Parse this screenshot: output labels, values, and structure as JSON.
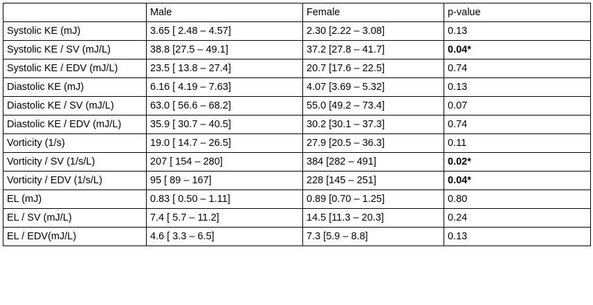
{
  "table": {
    "header": [
      "",
      "Male",
      "Female",
      "p-value"
    ],
    "rows": [
      [
        "Systolic KE (mJ)",
        "3.65 [ 2.48 – 4.57]",
        "2.30 [2.22 – 3.08]",
        "0.13"
      ],
      [
        "Systolic KE / SV (mJ/L)",
        "38.8 [27.5 – 49.1]",
        "37.2 [27.8 – 41.7]",
        {
          "text": "0.04*",
          "bold": true
        }
      ],
      [
        "Systolic KE / EDV (mJ/L)",
        "23.5 [ 13.8 – 27.4]",
        "20.7 [17.6 – 22.5]",
        "0.74"
      ],
      [
        "Diastolic KE (mJ)",
        "6.16 [ 4.19 – 7.63]",
        "4.07 [3.69 – 5.32]",
        "0.13"
      ],
      [
        "Diastolic KE / SV (mJ/L)",
        "63.0 [ 56.6 – 68.2]",
        "55.0 [49.2 – 73.4]",
        "0.07"
      ],
      [
        "Diastolic KE / EDV (mJ/L)",
        "35.9 [ 30.7 – 40.5]",
        "30.2 [30.1 – 37.3]",
        "0.74"
      ],
      [
        "Vorticity (1/s)",
        "19.0 [ 14.7 – 26.5]",
        "27.9 [20.5 – 36.3]",
        "0.11"
      ],
      [
        "Vorticity / SV (1/s/L)",
        "207 [ 154 – 280]",
        "384 [282 – 491]",
        {
          "text": "0.02*",
          "bold": true
        }
      ],
      [
        "Vorticity / EDV (1/s/L)",
        "95 [ 89 – 167]",
        "228 [145 – 251]",
        {
          "text": "0.04*",
          "bold": true
        }
      ],
      [
        "EL (mJ)",
        "0.83 [ 0.50 – 1.11]",
        "0.89 [0.70 – 1.25]",
        "0.80"
      ],
      [
        "EL / SV (mJ/L)",
        "7.4 [ 5.7 – 11.2]",
        "14.5 [11.3 – 20.3]",
        "0.24"
      ],
      [
        "EL / EDV(mJ/L)",
        "4.6 [ 3.3 – 6.5]",
        "7.3 [5.9 – 8.8]",
        "0.13"
      ]
    ]
  }
}
